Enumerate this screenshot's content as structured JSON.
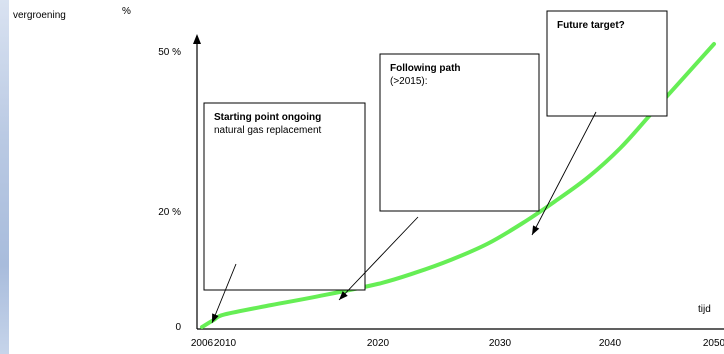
{
  "chart_data": {
    "type": "line",
    "title": "",
    "ylabel": "vergroening",
    "yunit": "%",
    "xlabel": "tijd",
    "x_ticks": [
      2006,
      2010,
      2020,
      2030,
      2040,
      2050
    ],
    "y_ticks": [
      {
        "value": 0,
        "label": "0"
      },
      {
        "value": 20,
        "label": "20 %"
      },
      {
        "value": 50,
        "label": "50 %"
      }
    ],
    "xlim": [
      2006,
      2050
    ],
    "ylim": [
      0,
      55
    ],
    "series": [
      {
        "color": "#66ee55",
        "x": [
          2006,
          2008,
          2010,
          2013,
          2016,
          2020,
          2023,
          2026,
          2029,
          2032,
          2035,
          2038,
          2041,
          2044,
          2047,
          2050
        ],
        "y": [
          0.0,
          1.2,
          2.2,
          3.8,
          5.3,
          7.5,
          9.4,
          11.7,
          14.5,
          18.0,
          22.0,
          26.5,
          32.0,
          38.5,
          45.0,
          51.5
        ]
      }
    ],
    "annotations": [
      {
        "title": "Starting point ongoing",
        "text": "natural gas replacement",
        "point": {
          "x": 2006,
          "y": 0
        }
      },
      {
        "title": "Following path",
        "text": "(>2015):",
        "point": {
          "x": 2016,
          "y": 5.3
        }
      },
      {
        "title": "Future target?",
        "text": "",
        "point": {
          "x": 2033,
          "y": 19.3
        }
      }
    ],
    "grid": false,
    "legend": "none"
  }
}
